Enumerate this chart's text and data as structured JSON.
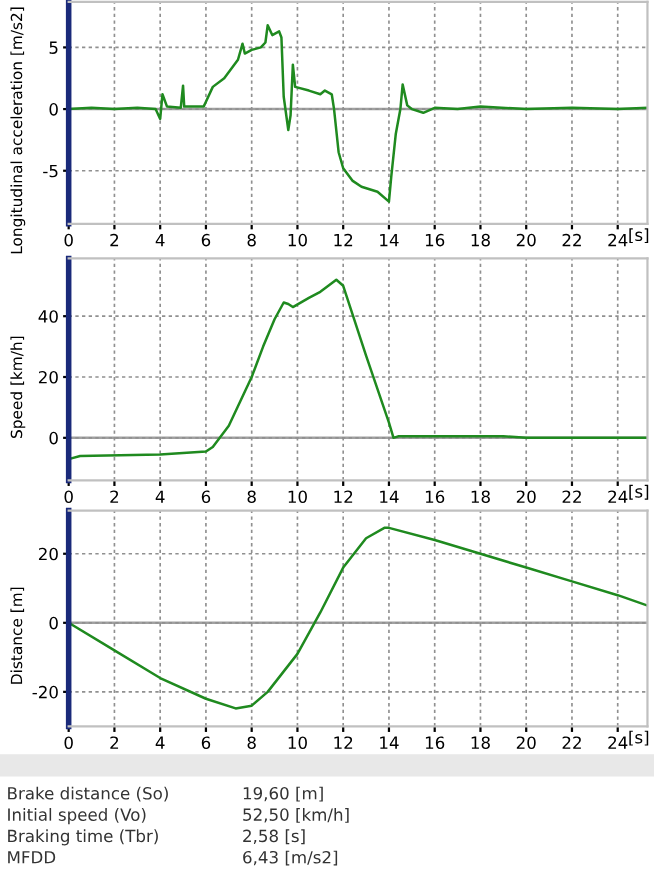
{
  "chart_data": [
    {
      "type": "line",
      "ylabel": "Longitudinal acceleration [m/s2]",
      "xlabel": "[s]",
      "xlim": [
        0,
        25.3
      ],
      "xticks": [
        0,
        2,
        4,
        6,
        8,
        10,
        12,
        14,
        16,
        18,
        20,
        22,
        24
      ],
      "ylim": [
        -9.3,
        8.7
      ],
      "yticks": [
        -5,
        0,
        5
      ],
      "grid": true,
      "ref_lines": [
        {
          "axis": "y",
          "value": 0,
          "color": "#a0a0a0"
        }
      ],
      "series": [
        {
          "color": "#1f8a1f",
          "x": [
            0,
            1,
            2,
            3,
            3.8,
            4,
            4.1,
            4.3,
            4.9,
            5.0,
            5.05,
            5.9,
            6.0,
            6.3,
            6.8,
            7.4,
            7.6,
            7.7,
            8.0,
            8.4,
            8.6,
            8.7,
            8.9,
            9.2,
            9.3,
            9.4,
            9.6,
            9.7,
            9.8,
            9.9,
            10.5,
            11.0,
            11.2,
            11.5,
            11.6,
            11.8,
            12.0,
            12.4,
            12.8,
            13.5,
            14.0,
            14.1,
            14.3,
            14.5,
            14.6,
            14.8,
            15.0,
            15.5,
            16,
            17,
            18,
            20,
            22,
            24,
            25.3
          ],
          "values": [
            0,
            0.1,
            0,
            0.1,
            0,
            -0.8,
            1.2,
            0.2,
            0.1,
            1.9,
            0.2,
            0.2,
            0.6,
            1.8,
            2.5,
            4.0,
            5.3,
            4.5,
            4.8,
            5.0,
            5.4,
            6.8,
            6.0,
            6.3,
            5.8,
            1.0,
            -1.7,
            -0.5,
            3.6,
            1.8,
            1.5,
            1.2,
            1.5,
            1.2,
            0.0,
            -3.5,
            -4.8,
            -5.8,
            -6.3,
            -6.7,
            -7.5,
            -5.5,
            -2,
            0,
            2.0,
            0.3,
            0,
            -0.3,
            0.1,
            0,
            0.2,
            0,
            0.1,
            0,
            0.1
          ]
        }
      ]
    },
    {
      "type": "line",
      "ylabel": "Speed [km/h]",
      "xlabel": "[s]",
      "xlim": [
        0,
        25.3
      ],
      "xticks": [
        0,
        2,
        4,
        6,
        8,
        10,
        12,
        14,
        16,
        18,
        20,
        22,
        24
      ],
      "ylim": [
        -14,
        59
      ],
      "yticks": [
        0,
        20,
        40
      ],
      "grid": true,
      "ref_lines": [
        {
          "axis": "y",
          "value": 0,
          "color": "#a0a0a0"
        }
      ],
      "series": [
        {
          "color": "#1f8a1f",
          "x": [
            0,
            0.5,
            4,
            6,
            6.3,
            7,
            8,
            8.5,
            9,
            9.4,
            9.6,
            9.8,
            10.5,
            11,
            11.7,
            12,
            13,
            14,
            14.2,
            14.4,
            19,
            20,
            25.3
          ],
          "values": [
            -7,
            -6,
            -5.5,
            -4.5,
            -3,
            4,
            20,
            30,
            39,
            44.5,
            44,
            43,
            46,
            48,
            52,
            50,
            27,
            5,
            0,
            0.5,
            0.5,
            0,
            0
          ]
        }
      ]
    },
    {
      "type": "line",
      "ylabel": "Distance [m]",
      "xlabel": "[s]",
      "xlim": [
        0,
        25.3
      ],
      "xticks": [
        0,
        2,
        4,
        6,
        8,
        10,
        12,
        14,
        16,
        18,
        20,
        22,
        24
      ],
      "ylim": [
        -30,
        32.5
      ],
      "yticks": [
        -20,
        0,
        20
      ],
      "grid": true,
      "ref_lines": [
        {
          "axis": "y",
          "value": 0,
          "color": "#a0a0a0"
        }
      ],
      "series": [
        {
          "color": "#1f8a1f",
          "x": [
            0,
            2,
            4,
            6,
            7.3,
            8,
            8.7,
            10,
            11,
            12,
            13,
            13.8,
            14,
            16,
            18,
            20,
            22,
            24,
            25.3
          ],
          "values": [
            0,
            -8,
            -16,
            -22,
            -24.8,
            -24,
            -20,
            -9,
            3,
            16,
            24.5,
            27.5,
            27.5,
            24,
            20,
            16,
            12,
            8,
            5
          ]
        }
      ],
      "annotations": [
        "Brake distance (So)",
        "19,60 [m]",
        "Initial speed (Vo)",
        "52,50 [km/h]",
        "Braking time (Tbr)",
        "2,58 [s]",
        "MFDD",
        "6,43 [m/s2]"
      ]
    }
  ]
}
